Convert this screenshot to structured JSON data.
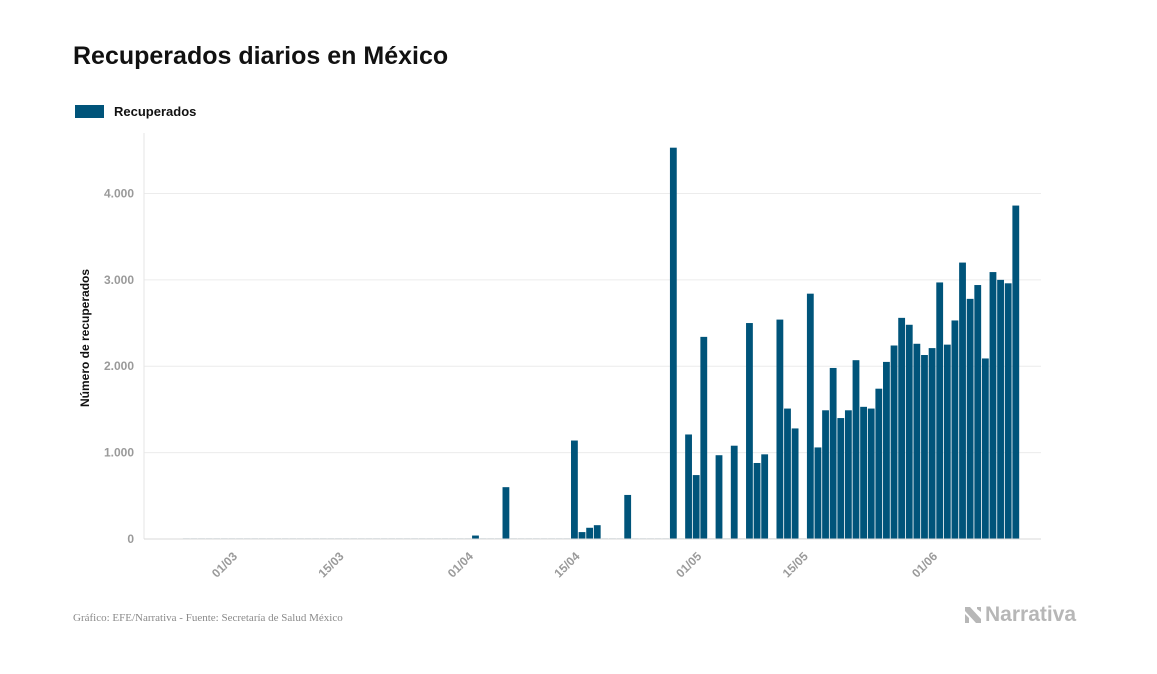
{
  "chart_data": {
    "type": "bar",
    "title": "Recuperados diarios en México",
    "ylabel": "Número de recuperados",
    "xlabel": "",
    "ylim": [
      0,
      4700
    ],
    "yticks": [
      0,
      1000,
      2000,
      3000,
      4000
    ],
    "ytick_labels": [
      "0",
      "1.000",
      "2.000",
      "3.000",
      "4.000"
    ],
    "xtick_labels": [
      "01/03",
      "15/03",
      "01/04",
      "15/04",
      "01/05",
      "15/05",
      "01/06"
    ],
    "legend_position": "top-left",
    "grid": true,
    "color": "#00547a",
    "series": [
      {
        "name": "Recuperados",
        "start_date": "2020-02-24",
        "values": [
          0,
          0,
          0,
          0,
          0,
          0,
          0,
          0,
          0,
          0,
          0,
          0,
          0,
          0,
          0,
          0,
          0,
          0,
          0,
          0,
          0,
          0,
          0,
          0,
          0,
          0,
          0,
          0,
          0,
          0,
          0,
          0,
          0,
          0,
          0,
          0,
          0,
          0,
          40,
          0,
          0,
          0,
          600,
          0,
          0,
          0,
          0,
          0,
          0,
          0,
          0,
          1140,
          80,
          130,
          160,
          0,
          0,
          0,
          510,
          0,
          0,
          0,
          0,
          0,
          4530,
          0,
          1210,
          740,
          2340,
          0,
          970,
          0,
          1080,
          0,
          2500,
          880,
          980,
          0,
          2540,
          1510,
          1280,
          0,
          2840,
          1060,
          1490,
          1980,
          1400,
          1490,
          2070,
          1530,
          1510,
          1740,
          2050,
          2240,
          2560,
          2480,
          2260,
          2130,
          2210,
          2970,
          2250,
          2530,
          3200,
          2780,
          2940,
          2090,
          3090,
          3000,
          2960,
          3860
        ]
      }
    ]
  },
  "footer": {
    "source": "Gráfico: EFE/Narrativa - Fuente: Secretaría de Salud México",
    "brand": "Narrativa"
  }
}
